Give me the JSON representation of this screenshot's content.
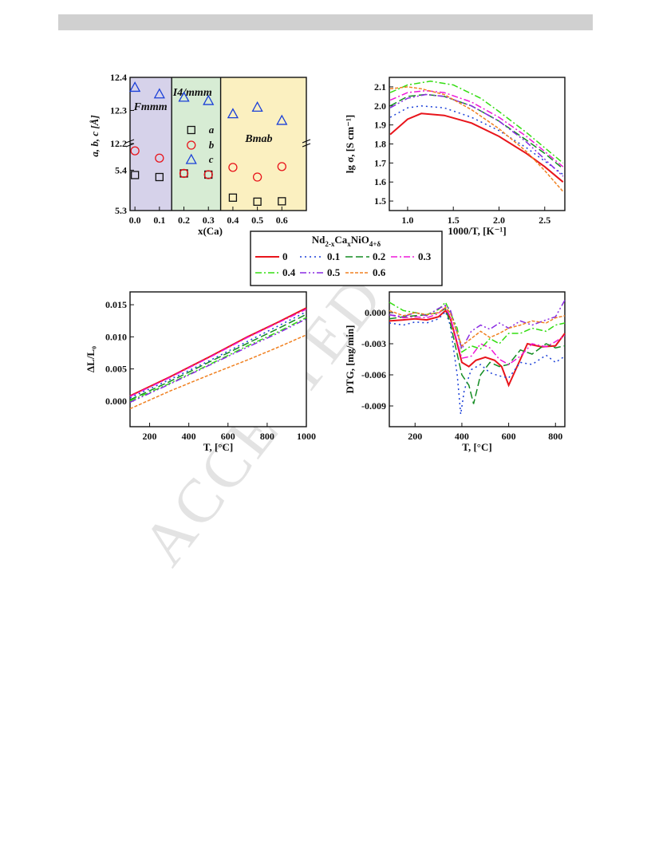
{
  "watermark": "ACCEPTED",
  "legend": {
    "title_main": "Nd",
    "title_sub1": "2-x",
    "title_mid": "Ca",
    "title_sub2": "x",
    "title_end": "NiO",
    "title_sub3": "4+δ",
    "items": [
      {
        "label": "0",
        "color": "#e8141b",
        "dash": ""
      },
      {
        "label": "0.1",
        "color": "#1a3fd8",
        "dash": "2,4"
      },
      {
        "label": "0.2",
        "color": "#138c22",
        "dash": "9,4"
      },
      {
        "label": "0.3",
        "color": "#ee18d8",
        "dash": "8,3,2,3"
      },
      {
        "label": "0.4",
        "color": "#33dd11",
        "dash": "8,3,2,3"
      },
      {
        "label": "0.5",
        "color": "#8a2be2",
        "dash": "8,3,2,3,2,3"
      },
      {
        "label": "0.6",
        "color": "#f08020",
        "dash": "4,2"
      }
    ]
  },
  "chart_data": [
    {
      "type": "scatter",
      "ylabel": "a, b, c [Å]",
      "xlabel": "x(Ca)",
      "xlim": [
        -0.02,
        0.7
      ],
      "x_ticks": [
        "0.0",
        "0.1",
        "0.2",
        "0.3",
        "0.4",
        "0.5",
        "0.6"
      ],
      "y_ticks_upper": [
        "12.4",
        "12.3",
        "12.2"
      ],
      "y_ticks_lower": [
        "5.4",
        "5.3"
      ],
      "regions": [
        {
          "label": "Fmmm",
          "from": -0.02,
          "to": 0.15,
          "color": "#d6d2ea"
        },
        {
          "label": "I4/mmm",
          "from": 0.15,
          "to": 0.35,
          "color": "#d7ecd4"
        },
        {
          "label": "Bmab",
          "from": 0.35,
          "to": 0.7,
          "color": "#fbf0c0"
        }
      ],
      "series": [
        {
          "name": "a",
          "marker": "square",
          "color": "#111111",
          "x": [
            0.0,
            0.1,
            0.2,
            0.3,
            0.4,
            0.5,
            0.6
          ],
          "values": [
            5.388,
            5.383,
            5.392,
            5.389,
            5.332,
            5.322,
            5.323
          ]
        },
        {
          "name": "b",
          "marker": "circle",
          "color": "#e8141b",
          "x": [
            0.0,
            0.1,
            0.2,
            0.3,
            0.4,
            0.5,
            0.6
          ],
          "values": [
            5.448,
            5.43,
            5.392,
            5.389,
            5.407,
            5.383,
            5.409
          ]
        },
        {
          "name": "c",
          "marker": "triangle",
          "color": "#1a3fd8",
          "x": [
            0.0,
            0.1,
            0.2,
            0.3,
            0.4,
            0.5,
            0.6
          ],
          "values": [
            12.37,
            12.35,
            12.34,
            12.33,
            12.29,
            12.31,
            12.27
          ]
        }
      ]
    },
    {
      "type": "line",
      "ylabel": "lg σ, [S cm⁻¹]",
      "xlabel": "1000/T, [K⁻¹]",
      "xlim": [
        0.8,
        2.72
      ],
      "ylim": [
        1.45,
        2.15
      ],
      "x_ticks": [
        "1.0",
        "1.5",
        "2.0",
        "2.5"
      ],
      "y_ticks": [
        "1.5",
        "1.6",
        "1.7",
        "1.8",
        "1.9",
        "2.0",
        "2.1"
      ],
      "series": [
        {
          "name": "0",
          "x": [
            0.81,
            1.0,
            1.15,
            1.4,
            1.7,
            2.0,
            2.3,
            2.5,
            2.7
          ],
          "values": [
            1.85,
            1.93,
            1.96,
            1.95,
            1.91,
            1.84,
            1.75,
            1.68,
            1.6
          ]
        },
        {
          "name": "0.1",
          "x": [
            0.81,
            1.0,
            1.15,
            1.4,
            1.7,
            2.0,
            2.3,
            2.5,
            2.7
          ],
          "values": [
            1.94,
            1.99,
            2.0,
            1.99,
            1.94,
            1.87,
            1.78,
            1.71,
            1.64
          ]
        },
        {
          "name": "0.2",
          "x": [
            0.81,
            1.0,
            1.2,
            1.4,
            1.7,
            2.0,
            2.3,
            2.5,
            2.7
          ],
          "values": [
            2.0,
            2.05,
            2.06,
            2.05,
            2.0,
            1.92,
            1.82,
            1.75,
            1.67
          ]
        },
        {
          "name": "0.3",
          "x": [
            0.81,
            1.0,
            1.2,
            1.4,
            1.7,
            2.0,
            2.3,
            2.5,
            2.7
          ],
          "values": [
            2.03,
            2.07,
            2.08,
            2.07,
            2.02,
            1.94,
            1.84,
            1.76,
            1.68
          ]
        },
        {
          "name": "0.4",
          "x": [
            0.81,
            1.0,
            1.25,
            1.5,
            1.8,
            2.0,
            2.3,
            2.5,
            2.7
          ],
          "values": [
            2.07,
            2.11,
            2.13,
            2.11,
            2.04,
            1.97,
            1.86,
            1.78,
            1.7
          ]
        },
        {
          "name": "0.5",
          "x": [
            0.81,
            1.0,
            1.2,
            1.4,
            1.7,
            2.0,
            2.3,
            2.5,
            2.7
          ],
          "values": [
            1.99,
            2.04,
            2.06,
            2.05,
            2.0,
            1.92,
            1.81,
            1.72,
            1.63
          ]
        },
        {
          "name": "0.6",
          "x": [
            0.81,
            1.0,
            1.15,
            1.4,
            1.7,
            2.0,
            2.3,
            2.5,
            2.7
          ],
          "values": [
            2.09,
            2.1,
            2.09,
            2.06,
            1.98,
            1.88,
            1.76,
            1.66,
            1.55
          ]
        }
      ]
    },
    {
      "type": "line",
      "ylabel": "ΔL/L₀",
      "xlabel": "T, [°C]",
      "xlim": [
        100,
        1000
      ],
      "ylim": [
        -0.004,
        0.017
      ],
      "x_ticks": [
        "200",
        "400",
        "600",
        "800",
        "1000"
      ],
      "y_ticks": [
        "0.000",
        "0.005",
        "0.010",
        "0.015"
      ],
      "series": [
        {
          "name": "0",
          "x": [
            100,
            300,
            500,
            700,
            850,
            1000
          ],
          "values": [
            0.0008,
            0.0037,
            0.0068,
            0.01,
            0.0122,
            0.0145
          ]
        },
        {
          "name": "0.1",
          "x": [
            100,
            300,
            500,
            700,
            850,
            1000
          ],
          "values": [
            0.0005,
            0.0033,
            0.0062,
            0.0093,
            0.0116,
            0.0139
          ]
        },
        {
          "name": "0.2",
          "x": [
            100,
            300,
            500,
            700,
            850,
            1000
          ],
          "values": [
            0.0002,
            0.003,
            0.006,
            0.009,
            0.0112,
            0.0135
          ]
        },
        {
          "name": "0.3",
          "x": [
            100,
            300,
            500,
            700,
            850,
            1000
          ],
          "values": [
            0.0007,
            0.0036,
            0.0067,
            0.0099,
            0.0121,
            0.0143
          ]
        },
        {
          "name": "0.4",
          "x": [
            100,
            300,
            500,
            700,
            850,
            1000
          ],
          "values": [
            0.0,
            0.0027,
            0.0056,
            0.0086,
            0.0107,
            0.013
          ]
        },
        {
          "name": "0.5",
          "x": [
            100,
            300,
            500,
            700,
            850,
            1000
          ],
          "values": [
            -0.0002,
            0.0026,
            0.0055,
            0.0084,
            0.0105,
            0.0128
          ]
        },
        {
          "name": "0.6",
          "x": [
            100,
            300,
            500,
            700,
            850,
            1000
          ],
          "values": [
            -0.0012,
            0.0015,
            0.004,
            0.0064,
            0.0083,
            0.0103
          ]
        }
      ]
    },
    {
      "type": "line",
      "ylabel": "DTG, [mg/min]",
      "xlabel": "T, [°C]",
      "xlim": [
        90,
        840
      ],
      "ylim": [
        -0.011,
        0.002
      ],
      "x_ticks": [
        "200",
        "400",
        "600",
        "800"
      ],
      "y_ticks": [
        "0.000",
        "-0.003",
        "-0.006",
        "-0.009"
      ],
      "series": [
        {
          "name": "0",
          "x": [
            90,
            150,
            200,
            250,
            300,
            330,
            350,
            380,
            400,
            430,
            460,
            500,
            540,
            570,
            600,
            630,
            680,
            740,
            800,
            840
          ],
          "values": [
            -0.0008,
            -0.0007,
            -0.0006,
            -0.0007,
            -0.0004,
            0.0002,
            -0.0005,
            -0.003,
            -0.0048,
            -0.0052,
            -0.0046,
            -0.0043,
            -0.0046,
            -0.0052,
            -0.007,
            -0.0055,
            -0.003,
            -0.0033,
            -0.0032,
            -0.002
          ]
        },
        {
          "name": "0.1",
          "x": [
            90,
            150,
            200,
            250,
            300,
            330,
            350,
            380,
            395,
            410,
            440,
            480,
            520,
            560,
            600,
            650,
            700,
            760,
            800,
            840
          ],
          "values": [
            -0.001,
            -0.0012,
            -0.0009,
            -0.001,
            -0.0006,
            0.0001,
            -0.0012,
            -0.006,
            -0.0098,
            -0.0075,
            -0.0055,
            -0.005,
            -0.0058,
            -0.0061,
            -0.0063,
            -0.0048,
            -0.005,
            -0.0041,
            -0.0048,
            -0.0042
          ]
        },
        {
          "name": "0.2",
          "x": [
            90,
            150,
            200,
            250,
            300,
            330,
            350,
            380,
            400,
            430,
            450,
            480,
            520,
            560,
            600,
            650,
            700,
            760,
            800,
            840
          ],
          "values": [
            -0.0006,
            -0.0004,
            -0.0003,
            -0.0002,
            0.0,
            0.0004,
            -0.001,
            -0.004,
            -0.006,
            -0.007,
            -0.0088,
            -0.006,
            -0.0048,
            -0.0052,
            -0.005,
            -0.0036,
            -0.004,
            -0.003,
            -0.0034,
            -0.0032
          ]
        },
        {
          "name": "0.3",
          "x": [
            90,
            150,
            200,
            250,
            300,
            330,
            350,
            380,
            400,
            440,
            480,
            520,
            560,
            600,
            650,
            700,
            760,
            800,
            840
          ],
          "values": [
            -0.0002,
            -0.0005,
            -0.0004,
            -0.0005,
            -0.0001,
            0.0006,
            -0.0004,
            -0.0028,
            -0.0044,
            -0.0042,
            -0.003,
            -0.0034,
            -0.0045,
            -0.005,
            -0.0042,
            -0.003,
            -0.0033,
            -0.0028,
            -0.0022
          ]
        },
        {
          "name": "0.4",
          "x": [
            90,
            150,
            200,
            250,
            300,
            330,
            350,
            380,
            400,
            440,
            480,
            520,
            560,
            600,
            650,
            700,
            760,
            800,
            840
          ],
          "values": [
            0.001,
            0.0002,
            0.0,
            -0.0002,
            0.0003,
            0.001,
            0.0,
            -0.0015,
            -0.0038,
            -0.0032,
            -0.0035,
            -0.0025,
            -0.003,
            -0.002,
            -0.002,
            -0.0015,
            -0.0018,
            -0.0012,
            -0.001
          ]
        },
        {
          "name": "0.5",
          "x": [
            90,
            150,
            200,
            250,
            300,
            330,
            350,
            380,
            400,
            440,
            480,
            520,
            560,
            600,
            650,
            700,
            760,
            800,
            840
          ],
          "values": [
            -0.0002,
            -0.0004,
            0.0,
            -0.0003,
            0.0004,
            0.0007,
            0.0003,
            -0.002,
            -0.0035,
            -0.0018,
            -0.0012,
            -0.0016,
            -0.001,
            -0.0015,
            -0.0008,
            -0.0012,
            -0.0007,
            -0.0004,
            0.0012
          ]
        },
        {
          "name": "0.6",
          "x": [
            90,
            150,
            200,
            250,
            300,
            330,
            350,
            380,
            400,
            440,
            480,
            520,
            560,
            600,
            650,
            700,
            760,
            800,
            840
          ],
          "values": [
            0.0002,
            -0.0003,
            0.0,
            -0.0002,
            0.0,
            0.0005,
            0.0,
            -0.002,
            -0.0032,
            -0.0025,
            -0.0018,
            -0.0024,
            -0.002,
            -0.0015,
            -0.0012,
            -0.0008,
            -0.001,
            -0.0005,
            -0.0003
          ]
        }
      ]
    }
  ]
}
